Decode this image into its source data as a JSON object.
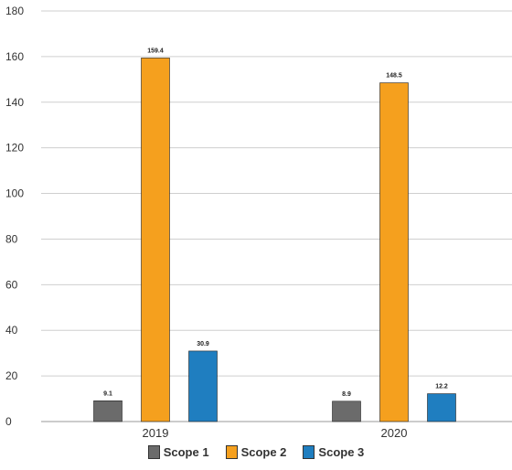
{
  "chart_data": {
    "type": "bar",
    "title": "",
    "xlabel": "",
    "ylabel": "",
    "categories": [
      "2019",
      "2020"
    ],
    "ylim": [
      0,
      180
    ],
    "yticks": [
      0,
      20,
      40,
      60,
      80,
      100,
      120,
      140,
      160,
      180
    ],
    "grid": true,
    "legend_position": "bottom",
    "series": [
      {
        "name": "Scope 1",
        "values": [
          9.1,
          8.9
        ],
        "labels": [
          "9.1",
          "8.9"
        ],
        "color": "#6b6b6b"
      },
      {
        "name": "Scope 2",
        "values": [
          159.4,
          148.5
        ],
        "labels": [
          "159.4",
          "148.5"
        ],
        "color": "#f5a01e"
      },
      {
        "name": "Scope 3",
        "values": [
          30.9,
          12.2
        ],
        "labels": [
          "30.9",
          "12.2"
        ],
        "color": "#1f7ec0"
      }
    ]
  }
}
